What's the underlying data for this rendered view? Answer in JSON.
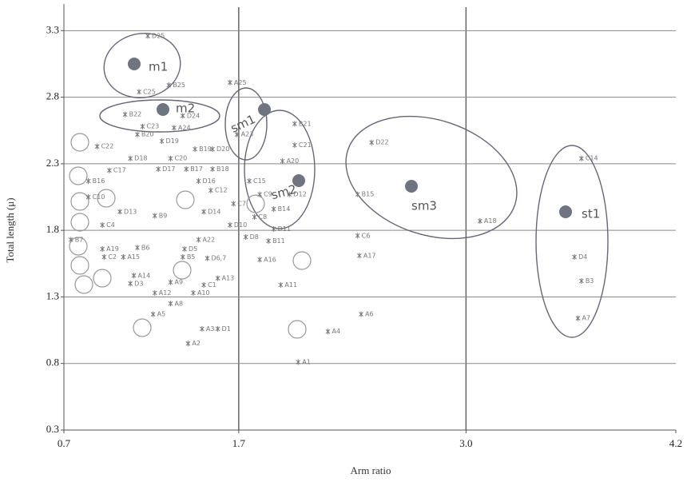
{
  "chart_data": {
    "type": "scatter",
    "x_label": "Arm ratio",
    "y_label": "Total length (μ)",
    "xlim": [
      0.7,
      4.2
    ],
    "ylim": [
      0.3,
      3.5
    ],
    "xticks": [
      0.7,
      1.7,
      {
        "value": 3.0,
        "label": "3.0"
      },
      4.2
    ],
    "yticks": [
      0.3,
      0.8,
      1.3,
      1.8,
      2.3,
      2.8,
      3.3
    ],
    "grid": true,
    "color": "#777777",
    "point_labels": [
      "D25",
      "B25",
      "C25",
      "A25",
      "B22",
      "C23",
      "A24",
      "D24",
      "A23",
      "B21",
      "C21",
      "A20",
      "D22",
      "B15",
      "D12",
      "C6",
      "A18",
      "A17",
      "A16",
      "A11",
      "A6",
      "A4",
      "A1",
      "D1",
      "A3",
      "A2",
      "A5",
      "A8",
      "A10",
      "C1",
      "A12",
      "A13",
      "A9",
      "D3",
      "A14",
      "A15",
      "B5",
      "D5",
      "D6,7",
      "A22",
      "D8",
      "B11",
      "D11",
      "D10",
      "C14",
      "D4",
      "B3",
      "A7",
      "C4",
      "B7",
      "A19",
      "B6",
      "C2",
      "C22",
      "C17",
      "B16",
      "C10",
      "B20",
      "D19",
      "D18",
      "C20",
      "B19",
      "D20",
      "D17",
      "B17",
      "D16",
      "B18",
      "C12",
      "C15",
      "C9",
      "C8",
      "B14",
      "C7",
      "D14",
      "D13",
      "B9"
    ],
    "x": [
      1.18,
      1.3,
      1.13,
      1.65,
      1.05,
      1.15,
      1.33,
      1.38,
      1.69,
      2.02,
      2.02,
      1.95,
      2.46,
      2.38,
      1.99,
      2.38,
      3.08,
      2.39,
      1.82,
      1.94,
      2.4,
      2.21,
      2.04,
      1.58,
      1.49,
      1.41,
      1.21,
      1.31,
      1.44,
      1.5,
      1.22,
      1.58,
      1.31,
      1.08,
      1.1,
      1.04,
      1.38,
      1.39,
      1.52,
      1.47,
      1.74,
      1.87,
      1.9,
      1.65,
      3.66,
      3.62,
      3.66,
      3.64,
      0.92,
      0.74,
      0.92,
      1.12,
      0.93,
      0.89,
      0.96,
      0.84,
      0.84,
      1.12,
      1.26,
      1.08,
      1.31,
      1.45,
      1.55,
      1.24,
      1.4,
      1.47,
      1.55,
      1.54,
      1.76,
      1.82,
      1.79,
      1.9,
      1.67,
      1.5,
      1.02,
      1.22
    ],
    "values": [
      3.26,
      2.89,
      2.84,
      2.91,
      2.67,
      2.58,
      2.57,
      2.66,
      2.52,
      2.6,
      2.44,
      2.32,
      2.46,
      2.07,
      2.07,
      1.76,
      1.87,
      1.61,
      1.58,
      1.39,
      1.17,
      1.04,
      0.81,
      1.06,
      1.06,
      0.95,
      1.17,
      1.25,
      1.33,
      1.39,
      1.33,
      1.44,
      1.41,
      1.4,
      1.46,
      1.6,
      1.6,
      1.66,
      1.59,
      1.73,
      1.75,
      1.72,
      1.81,
      1.84,
      2.34,
      1.6,
      1.42,
      1.14,
      1.84,
      1.73,
      1.66,
      1.67,
      1.6,
      2.43,
      2.25,
      2.17,
      2.05,
      2.52,
      2.47,
      2.34,
      2.34,
      2.41,
      2.41,
      2.26,
      2.26,
      2.17,
      2.26,
      2.1,
      2.17,
      2.07,
      1.9,
      1.96,
      2.0,
      1.94,
      1.94,
      1.91
    ],
    "annotations": [
      "m1",
      "m2",
      "sm1",
      "sm2",
      "sm3",
      "st1"
    ]
  }
}
